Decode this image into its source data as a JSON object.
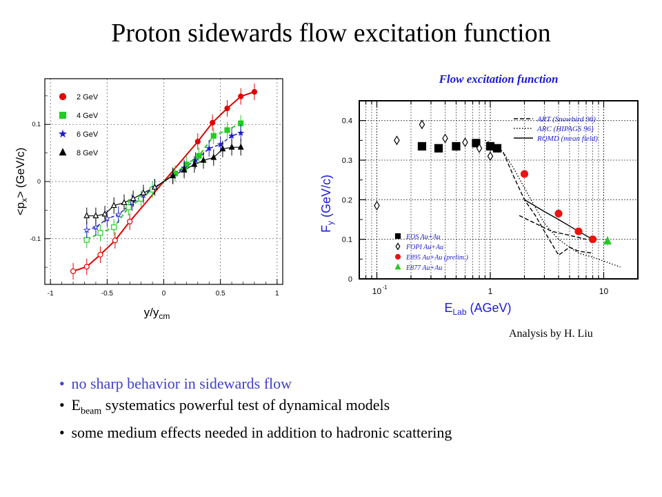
{
  "page_title": "Proton sidewards flow excitation function",
  "credit": "Analysis by H. Liu",
  "bullets": [
    {
      "text": "no sharp behavior in sidewards flow",
      "color": "#4040c8"
    },
    {
      "prefix": "E",
      "sub": "beam",
      "text": " systematics powerful test of dynamical models"
    },
    {
      "text": "some medium effects needed in addition to hadronic scattering"
    }
  ],
  "chart_data": [
    {
      "type": "scatter",
      "xlabel": "y/y",
      "xlabel_sub": "cm",
      "ylabel": "<p",
      "ylabel_sub": "x",
      "ylabel_tail": "> (GeV/c)",
      "xlim": [
        -1.05,
        1.05
      ],
      "ylim": [
        -0.18,
        0.18
      ],
      "x_ticks": [
        "-1",
        "-0.5",
        "0",
        "0.5",
        "1"
      ],
      "y_ticks": [
        "-0.1",
        "0",
        "0.1"
      ],
      "grid": true,
      "legend_position": "top-left",
      "series": [
        {
          "name": "2 GeV",
          "color": "#e00000",
          "marker": "circle",
          "x": [
            0.3,
            0.43,
            0.56,
            0.68,
            0.8
          ],
          "y": [
            0.07,
            0.103,
            0.128,
            0.149,
            0.157
          ],
          "mirror_x": [
            -0.3,
            -0.43,
            -0.56,
            -0.68,
            -0.8
          ],
          "mirror_y": [
            -0.07,
            -0.103,
            -0.128,
            -0.149,
            -0.157
          ]
        },
        {
          "name": "4 GeV",
          "color": "#22cc22",
          "marker": "square",
          "x": [
            0.1,
            0.2,
            0.31,
            0.44,
            0.56,
            0.68
          ],
          "y": [
            0.014,
            0.03,
            0.045,
            0.08,
            0.09,
            0.102
          ],
          "mirror_x": [
            -0.1,
            -0.2,
            -0.31,
            -0.44,
            -0.56,
            -0.68
          ],
          "mirror_y": [
            -0.014,
            -0.03,
            -0.045,
            -0.08,
            -0.09,
            -0.102
          ]
        },
        {
          "name": "6 GeV",
          "color": "#1a1acc",
          "marker": "star",
          "x": [
            0.08,
            0.18,
            0.28,
            0.4,
            0.5,
            0.6,
            0.68
          ],
          "y": [
            0.01,
            0.024,
            0.037,
            0.058,
            0.065,
            0.08,
            0.085
          ],
          "mirror_x": [
            -0.08,
            -0.18,
            -0.28,
            -0.4,
            -0.5,
            -0.6,
            -0.68
          ],
          "mirror_y": [
            -0.01,
            -0.024,
            -0.037,
            -0.058,
            -0.065,
            -0.08,
            -0.085
          ]
        },
        {
          "name": "8 GeV",
          "color": "#000000",
          "marker": "triangle",
          "x": [
            0.08,
            0.18,
            0.27,
            0.35,
            0.44,
            0.52,
            0.6,
            0.68
          ],
          "y": [
            0.01,
            0.02,
            0.03,
            0.037,
            0.042,
            0.057,
            0.06,
            0.06
          ],
          "mirror_x": [
            -0.08,
            -0.18,
            -0.27,
            -0.35,
            -0.44,
            -0.52,
            -0.6,
            -0.68
          ],
          "mirror_y": [
            -0.01,
            -0.02,
            -0.03,
            -0.037,
            -0.042,
            -0.057,
            -0.06,
            -0.06
          ]
        }
      ]
    },
    {
      "type": "scatter",
      "title": "Flow excitation function",
      "xlabel": "E",
      "xlabel_sub": "Lab",
      "xlabel_tail": " (AGeV)",
      "ylabel": "F",
      "ylabel_sub": "y",
      "ylabel_tail": " (GeV/c)",
      "x_scale": "log",
      "xlim": [
        0.07,
        20
      ],
      "ylim": [
        0,
        0.45
      ],
      "x_ticks": [
        "10",
        "1",
        "10"
      ],
      "x_tick_values": [
        0.1,
        1,
        10
      ],
      "y_ticks": [
        "0",
        "0.1",
        "0.2",
        "0.3",
        "0.4"
      ],
      "grid": true,
      "model_legend_position": "top-right",
      "data_legend_position": "bottom-left",
      "models": [
        {
          "name": "ART (Snowbird 96)",
          "style": "dashed",
          "x": [
            1.3,
            1.6,
            2,
            2.5,
            3,
            4,
            5,
            6,
            8
          ],
          "y": [
            0.32,
            0.26,
            0.2,
            0.16,
            0.12,
            0.06,
            0.08,
            0.07,
            0.065
          ]
        },
        {
          "name": "ARC (HIPAGS 96)",
          "style": "dotted",
          "x": [
            0.9,
            1.1,
            1.3,
            1.6,
            2,
            2.5,
            3,
            4,
            5,
            6,
            8,
            10,
            14
          ],
          "y": [
            0.35,
            0.34,
            0.32,
            0.28,
            0.23,
            0.18,
            0.14,
            0.1,
            0.08,
            0.065,
            0.055,
            0.045,
            0.03
          ]
        },
        {
          "name": "RQMD (mean field)",
          "style": "solid",
          "x": [
            2,
            3,
            4,
            6,
            8
          ],
          "y": [
            0.2,
            0.17,
            0.15,
            0.12,
            0.1
          ]
        },
        {
          "name": "",
          "style": "dashed",
          "x": [
            1.8,
            2.5,
            3.5,
            5,
            7
          ],
          "y": [
            0.16,
            0.14,
            0.12,
            0.11,
            0.1
          ]
        }
      ],
      "series": [
        {
          "name": "EOS Au+Au",
          "color": "#000000",
          "marker": "square",
          "x": [
            0.25,
            0.35,
            0.5,
            0.75,
            1.0,
            1.15
          ],
          "y": [
            0.335,
            0.33,
            0.335,
            0.343,
            0.335,
            0.33
          ]
        },
        {
          "name": "FOPI Au+Au",
          "color": "#000000",
          "marker": "diamond",
          "x": [
            0.1,
            0.15,
            0.25,
            0.4,
            0.6,
            0.8,
            1.0
          ],
          "y": [
            0.185,
            0.35,
            0.39,
            0.355,
            0.345,
            0.33,
            0.31
          ]
        },
        {
          "name": "E895 Au+Au (prelim.)",
          "color": "#ee1111",
          "marker": "circle",
          "x": [
            2,
            4,
            6,
            8
          ],
          "y": [
            0.265,
            0.165,
            0.12,
            0.1
          ]
        },
        {
          "name": "E877 Au+Au",
          "color": "#22cc22",
          "marker": "triangle",
          "x": [
            10.8
          ],
          "y": [
            0.095
          ]
        }
      ]
    }
  ]
}
